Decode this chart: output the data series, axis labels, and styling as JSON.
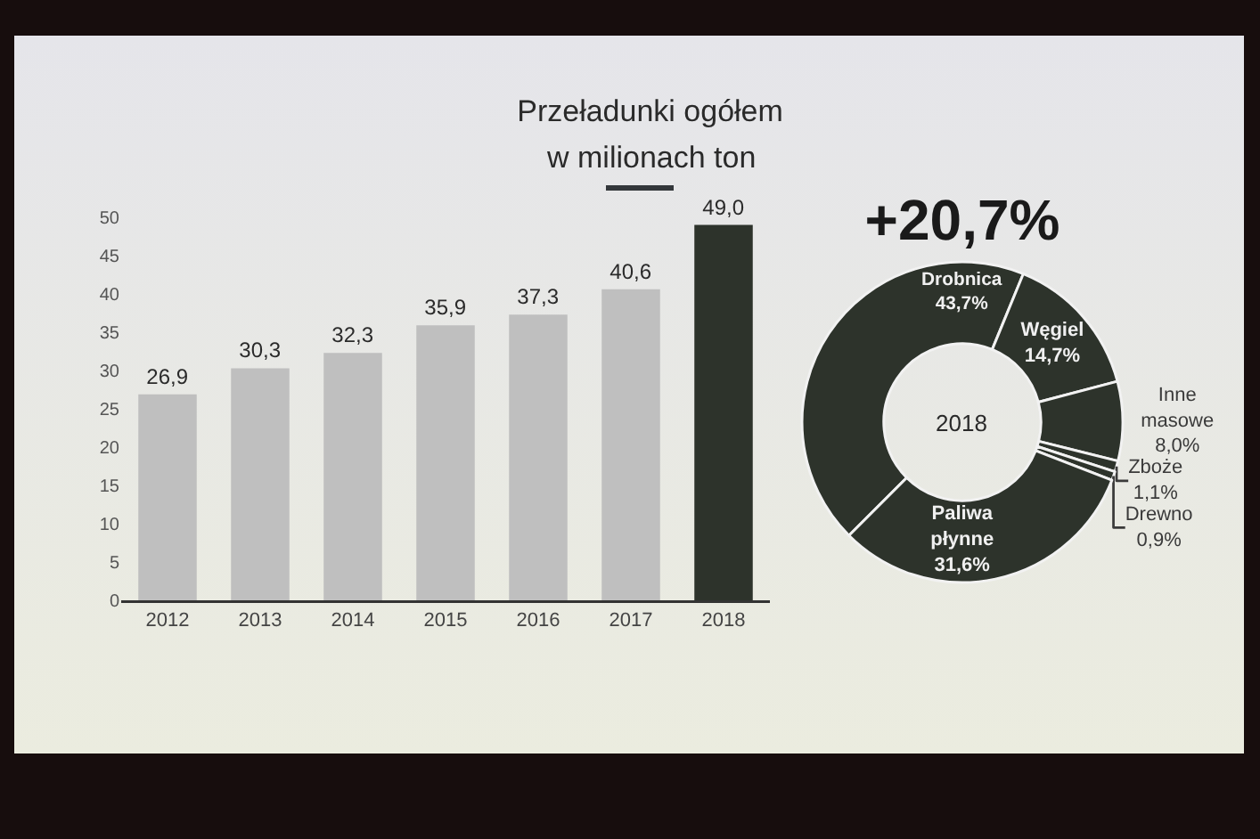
{
  "chart_data": [
    {
      "type": "bar",
      "title": "Przeładunki ogółem",
      "subtitle": "w milionach ton",
      "categories": [
        "2012",
        "2013",
        "2014",
        "2015",
        "2016",
        "2017",
        "2018"
      ],
      "values": [
        26.9,
        30.3,
        32.3,
        35.9,
        37.3,
        40.6,
        49.0
      ],
      "colors": [
        "#bfbfbf",
        "#bfbfbf",
        "#bfbfbf",
        "#bfbfbf",
        "#bfbfbf",
        "#bfbfbf",
        "#2d332b"
      ],
      "value_labels": [
        "26,9",
        "30,3",
        "32,3",
        "35,9",
        "37,3",
        "40,6",
        "49,0"
      ],
      "ylim": [
        0,
        50
      ],
      "yticks": [
        0,
        5,
        10,
        15,
        20,
        25,
        30,
        35,
        40,
        45,
        50
      ]
    },
    {
      "type": "donut",
      "title": "+20,7%",
      "categories": [
        "Drobnica",
        "Węgiel",
        "Inne masowe",
        "Zboże",
        "Drewno",
        "Paliwa płynne"
      ],
      "values": [
        43.7,
        14.7,
        8.0,
        1.1,
        0.9,
        31.6
      ],
      "colors": [
        "#2d332b",
        "#2d332b",
        "#2d332b",
        "#2d332b",
        "#2d332b",
        "#2d332b"
      ],
      "value_labels": [
        "43,7%",
        "14,7%",
        "8,0%",
        "1,1%",
        "0,9%",
        "31,6%"
      ],
      "annotations": [
        "2018"
      ]
    }
  ]
}
